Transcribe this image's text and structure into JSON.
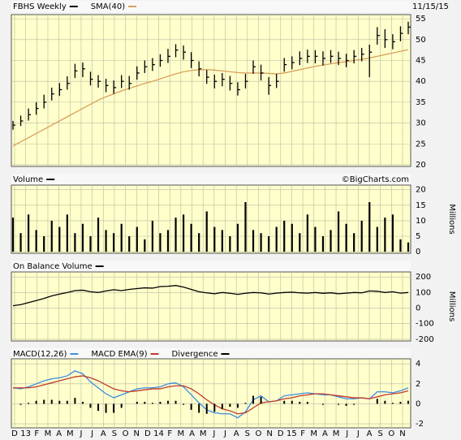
{
  "chart_data": [
    {
      "type": "ohlc",
      "date": "11/15/15",
      "ylim": [
        19.6,
        56
      ],
      "yticks": [
        20,
        25,
        30,
        35,
        40,
        45,
        50,
        55
      ],
      "series": [
        {
          "name": "FBHS Weekly",
          "color": "#000000",
          "high": [
            30.5,
            31.8,
            33.5,
            35,
            36.8,
            38.5,
            39.6,
            41.2,
            44.2,
            44.5,
            42.3,
            41.5,
            40.6,
            40.2,
            41.5,
            41.3,
            43.6,
            45,
            45.6,
            46.5,
            47.8,
            48.9,
            48.6,
            47,
            44.8,
            42.7,
            41.6,
            42,
            41.3,
            39.8,
            41.8,
            45,
            44,
            41,
            41.8,
            45.6,
            46,
            47.2,
            47.6,
            47.5,
            47.2,
            47.5,
            47.1,
            46.6,
            47.5,
            48,
            48.8,
            53,
            52.5,
            51.3,
            53.2,
            54.3
          ],
          "low": [
            28.4,
            29.3,
            30.6,
            32,
            33.5,
            35.4,
            36.5,
            38,
            40.8,
            41,
            39,
            38.5,
            37.4,
            37,
            38.4,
            38,
            40.4,
            42,
            42.5,
            43.5,
            44.4,
            45.8,
            45.2,
            43.2,
            41.2,
            39.4,
            38.3,
            38.8,
            37.8,
            36.6,
            38.3,
            41.8,
            40.2,
            36.8,
            38.4,
            42.3,
            42.9,
            43.9,
            44.4,
            44.3,
            43.8,
            44.4,
            43.9,
            43.4,
            44.3,
            44.8,
            41,
            48.8,
            48,
            47.7,
            49.6,
            51.3
          ],
          "close": [
            29.5,
            30.5,
            32,
            33.5,
            35,
            37,
            38,
            39.5,
            42.5,
            43,
            40.5,
            40,
            39,
            38.5,
            40,
            39.5,
            42,
            43.5,
            44,
            45,
            46,
            47.5,
            47,
            45,
            43,
            41,
            40,
            40.5,
            39.5,
            38,
            40,
            43.5,
            42,
            39,
            40,
            44,
            44.5,
            45.5,
            46,
            46,
            45.5,
            46,
            45.5,
            45,
            46,
            46.5,
            47,
            51,
            50,
            49.5,
            51.5,
            53
          ]
        },
        {
          "name": "SMA(40)",
          "color": "#d9a05b",
          "values": [
            24.5,
            25.5,
            26.5,
            27.5,
            28.5,
            29.5,
            30.5,
            31.5,
            32.5,
            33.5,
            34.5,
            35.5,
            36.3,
            37,
            37.7,
            38.3,
            38.9,
            39.5,
            40,
            40.6,
            41.2,
            41.8,
            42.3,
            42.6,
            42.8,
            42.8,
            42.7,
            42.5,
            42.3,
            42.1,
            42,
            42,
            42,
            41.9,
            41.8,
            42,
            42.4,
            42.8,
            43.2,
            43.6,
            43.9,
            44.2,
            44.5,
            44.7,
            45,
            45.3,
            45.6,
            46,
            46.4,
            46.8,
            47.2,
            47.6
          ]
        }
      ]
    },
    {
      "type": "bar",
      "credit": "©BigCharts.com",
      "unit_label": "Millions",
      "ylim": [
        -0.5,
        21.5
      ],
      "yticks": [
        0,
        5,
        10,
        15,
        20
      ],
      "series": [
        {
          "name": "Volume",
          "color": "#000000",
          "values": [
            11,
            6,
            12,
            7,
            5,
            10,
            8,
            12,
            6,
            9,
            5,
            11,
            7,
            6,
            9,
            5,
            8,
            4,
            10,
            6,
            7,
            11,
            12,
            9,
            6,
            13,
            8,
            7,
            5,
            9,
            16,
            7,
            6,
            5,
            8,
            10,
            9,
            6,
            12,
            8,
            5,
            7,
            13,
            9,
            6,
            10,
            16,
            8,
            11,
            12,
            4,
            3
          ]
        }
      ]
    },
    {
      "type": "line",
      "unit_label": "Millions",
      "ylim": [
        -211,
        232
      ],
      "yticks": [
        200,
        100,
        0,
        -100,
        -200
      ],
      "series": [
        {
          "name": "On Balance Volume",
          "color": "#000000",
          "values": [
            15,
            22,
            35,
            48,
            62,
            78,
            90,
            100,
            112,
            115,
            105,
            100,
            110,
            118,
            112,
            120,
            125,
            130,
            128,
            138,
            140,
            145,
            135,
            120,
            105,
            98,
            92,
            100,
            95,
            88,
            95,
            100,
            98,
            90,
            96,
            100,
            102,
            98,
            96,
            100,
            95,
            98,
            92,
            96,
            100,
            98,
            110,
            108,
            100,
            105,
            96,
            100
          ]
        }
      ]
    },
    {
      "type": "macd",
      "ylim": [
        -2.4,
        4.5
      ],
      "yticks": [
        4,
        2,
        0,
        -2
      ],
      "series": [
        {
          "name": "MACD(12,26)",
          "color": "#3c8de0",
          "values": [
            1.6,
            1.5,
            1.7,
            2,
            2.3,
            2.5,
            2.6,
            2.8,
            3.3,
            3,
            2.2,
            1.6,
            1,
            0.6,
            0.9,
            1.2,
            1.5,
            1.6,
            1.6,
            1.7,
            2,
            2.1,
            1.7,
            0.9,
            0.1,
            -0.6,
            -0.9,
            -1,
            -1,
            -1.4,
            -0.8,
            0.4,
            0.8,
            0.2,
            0.3,
            0.8,
            0.9,
            1,
            1.1,
            1,
            0.9,
            0.9,
            0.7,
            0.5,
            0.5,
            0.6,
            0.5,
            1.2,
            1.2,
            1.1,
            1.3,
            1.6
          ]
        },
        {
          "name": "MACD EMA(9)",
          "color": "#c0392b",
          "values": [
            1.6,
            1.6,
            1.6,
            1.7,
            1.9,
            2.1,
            2.3,
            2.5,
            2.7,
            2.8,
            2.6,
            2.3,
            1.9,
            1.5,
            1.3,
            1.2,
            1.3,
            1.4,
            1.5,
            1.5,
            1.7,
            1.8,
            1.8,
            1.5,
            1,
            0.4,
            -0.1,
            -0.5,
            -0.7,
            -1,
            -0.9,
            -0.4,
            0.1,
            0.2,
            0.3,
            0.5,
            0.6,
            0.8,
            0.9,
            1,
            1,
            0.9,
            0.8,
            0.7,
            0.6,
            0.6,
            0.5,
            0.7,
            0.9,
            1,
            1.1,
            1.3
          ]
        },
        {
          "name": "Divergence",
          "color": "#000000",
          "style": "bar",
          "values": [
            0,
            -0.1,
            0.1,
            0.3,
            0.4,
            0.4,
            0.3,
            0.3,
            0.6,
            0.2,
            -0.4,
            -0.7,
            -0.9,
            -0.9,
            -0.4,
            0,
            0.2,
            0.2,
            0.1,
            0.2,
            0.3,
            0.3,
            -0.1,
            -0.6,
            -0.9,
            -1,
            -0.8,
            -0.5,
            -0.3,
            -0.4,
            0.1,
            0.8,
            0.7,
            0,
            0,
            0.3,
            0.3,
            0.2,
            0.2,
            0,
            -0.1,
            0,
            -0.1,
            -0.2,
            -0.1,
            0,
            0,
            0.5,
            0.3,
            0.1,
            0.2,
            0.3
          ]
        }
      ]
    }
  ],
  "x_axis": {
    "labels": [
      "D",
      "13",
      "F",
      "M",
      "A",
      "M",
      "J",
      "J",
      "A",
      "S",
      "O",
      "N",
      "D",
      "14",
      "F",
      "M",
      "A",
      "M",
      "J",
      "J",
      "A",
      "S",
      "O",
      "N",
      "D",
      "15",
      "F",
      "M",
      "A",
      "M",
      "J",
      "J",
      "A",
      "S",
      "O",
      "N"
    ]
  }
}
